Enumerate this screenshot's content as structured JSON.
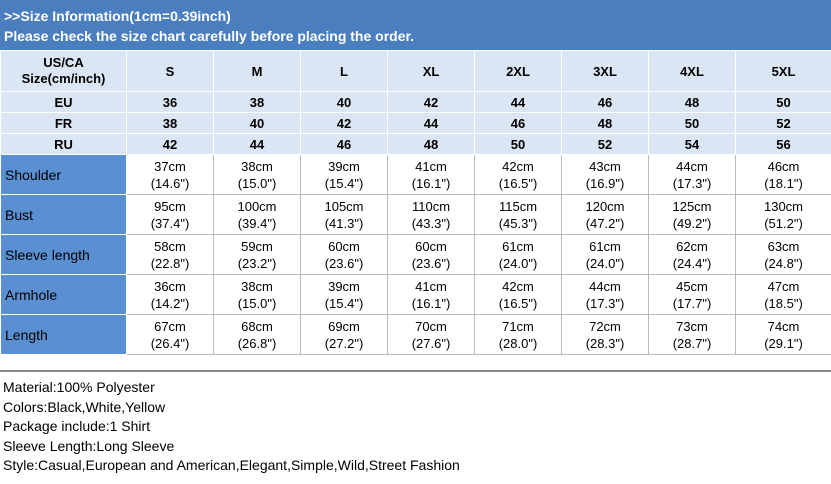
{
  "header": {
    "line1": ">>Size Information(1cm=0.39inch)",
    "line2": "Please check the size chart carefully before placing the order."
  },
  "size_table": {
    "corner_line1": "US/CA",
    "corner_line2": "Size(cm/inch)",
    "sizes": [
      "S",
      "M",
      "L",
      "XL",
      "2XL",
      "3XL",
      "4XL",
      "5XL"
    ],
    "rows": [
      {
        "label": "EU",
        "values": [
          "36",
          "38",
          "40",
          "42",
          "44",
          "46",
          "48",
          "50"
        ]
      },
      {
        "label": "FR",
        "values": [
          "38",
          "40",
          "42",
          "44",
          "46",
          "48",
          "50",
          "52"
        ]
      },
      {
        "label": "RU",
        "values": [
          "42",
          "44",
          "46",
          "48",
          "50",
          "52",
          "54",
          "56"
        ]
      }
    ]
  },
  "measurements": [
    {
      "label": "Shoulder",
      "cm": [
        "37cm",
        "38cm",
        "39cm",
        "41cm",
        "42cm",
        "43cm",
        "44cm",
        "46cm"
      ],
      "inch": [
        "(14.6\")",
        "(15.0\")",
        "(15.4\")",
        "(16.1\")",
        "(16.5\")",
        "(16.9\")",
        "(17.3\")",
        "(18.1\")"
      ]
    },
    {
      "label": "Bust",
      "cm": [
        "95cm",
        "100cm",
        "105cm",
        "110cm",
        "115cm",
        "120cm",
        "125cm",
        "130cm"
      ],
      "inch": [
        "(37.4\")",
        "(39.4\")",
        "(41.3\")",
        "(43.3\")",
        "(45.3\")",
        "(47.2\")",
        "(49.2\")",
        "(51.2\")"
      ]
    },
    {
      "label": "Sleeve length",
      "cm": [
        "58cm",
        "59cm",
        "60cm",
        "60cm",
        "61cm",
        "61cm",
        "62cm",
        "63cm"
      ],
      "inch": [
        "(22.8\")",
        "(23.2\")",
        "(23.6\")",
        "(23.6\")",
        "(24.0\")",
        "(24.0\")",
        "(24.4\")",
        "(24.8\")"
      ]
    },
    {
      "label": "Armhole",
      "cm": [
        "36cm",
        "38cm",
        "39cm",
        "41cm",
        "42cm",
        "44cm",
        "45cm",
        "47cm"
      ],
      "inch": [
        "(14.2\")",
        "(15.0\")",
        "(15.4\")",
        "(16.1\")",
        "(16.5\")",
        "(17.3\")",
        "(17.7\")",
        "(18.5\")"
      ]
    },
    {
      "label": "Length",
      "cm": [
        "67cm",
        "68cm",
        "69cm",
        "70cm",
        "71cm",
        "72cm",
        "73cm",
        "74cm"
      ],
      "inch": [
        "(26.4\")",
        "(26.8\")",
        "(27.2\")",
        "(27.6\")",
        "(28.0\")",
        "(28.3\")",
        "(28.7\")",
        "(29.1\")"
      ]
    }
  ],
  "info": [
    "Material:100% Polyester",
    "Colors:Black,White,Yellow",
    "Package include:1 Shirt",
    "Sleeve Length:Long Sleeve",
    "Style:Casual,European and American,Elegant,Simple,Wild,Street Fashion"
  ],
  "colors": {
    "header_bg": "#4a7ebf",
    "size_row_bg": "#dbe6f5",
    "measure_label_bg": "#5a8fd1"
  }
}
